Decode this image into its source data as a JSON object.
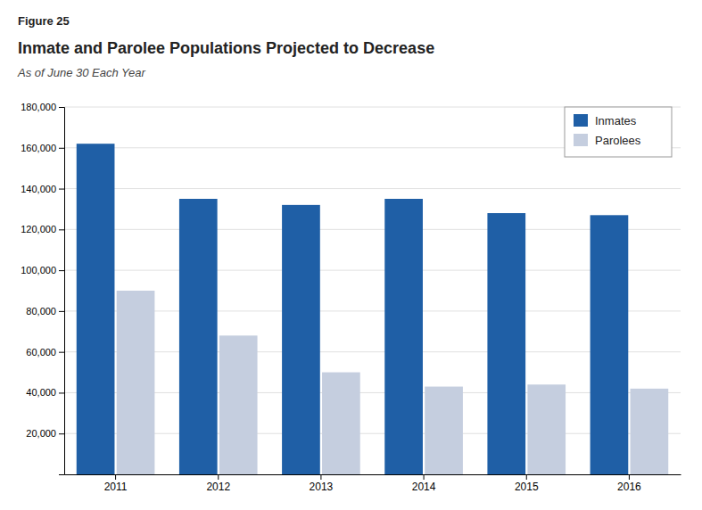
{
  "chart_data": {
    "type": "bar",
    "annotations": [
      "Figure 25"
    ],
    "title": "Inmate and Parolee Populations Projected to Decrease",
    "subtitle": "As of June 30 Each Year",
    "categories": [
      "2011",
      "2012",
      "2013",
      "2014",
      "2015",
      "2016"
    ],
    "series": [
      {
        "name": "Inmates",
        "color": "#1F5FA6",
        "values": [
          162000,
          135000,
          132000,
          135000,
          128000,
          127000
        ]
      },
      {
        "name": "Parolees",
        "color": "#C5CEDF",
        "values": [
          90000,
          68000,
          50000,
          43000,
          44000,
          42000
        ]
      }
    ],
    "ylim": [
      0,
      180000
    ],
    "yticks": [
      {
        "value": 20000,
        "label": "20,000"
      },
      {
        "value": 40000,
        "label": "40,000"
      },
      {
        "value": 60000,
        "label": "60,000"
      },
      {
        "value": 80000,
        "label": "80,000"
      },
      {
        "value": 100000,
        "label": "100,000"
      },
      {
        "value": 120000,
        "label": "120,000"
      },
      {
        "value": 140000,
        "label": "140,000"
      },
      {
        "value": 160000,
        "label": "160,000"
      },
      {
        "value": 180000,
        "label": "180,000"
      }
    ],
    "grid": true,
    "legend": "upper right"
  }
}
